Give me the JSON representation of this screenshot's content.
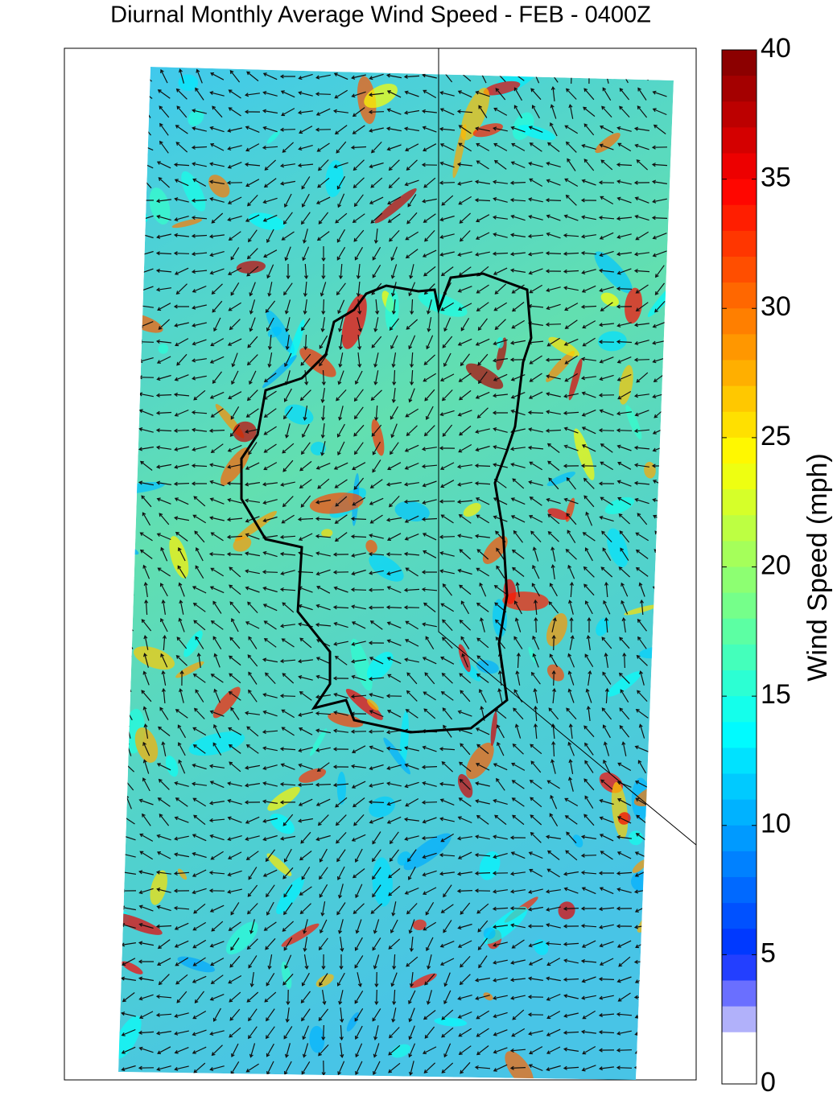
{
  "chart_data": {
    "type": "heatmap",
    "title": "Diurnal Monthly Average Wind Speed - FEB - 0400Z",
    "colorbar": {
      "label": "Wind Speed (mph)",
      "lim": [
        0,
        40
      ],
      "ticks": [
        0,
        5,
        10,
        15,
        20,
        25,
        30,
        35,
        40
      ],
      "colormap": "jet"
    }
  }
}
